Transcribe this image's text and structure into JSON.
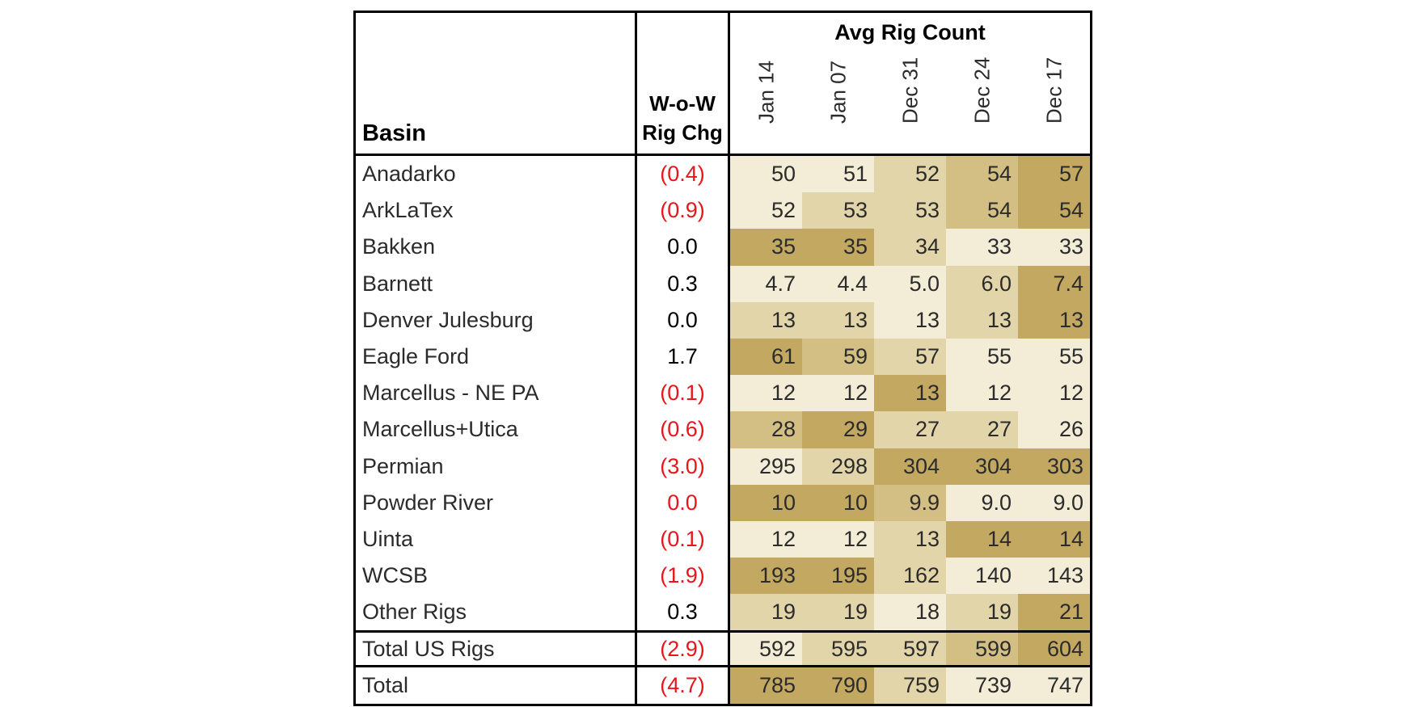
{
  "table": {
    "header": {
      "basin": "Basin",
      "chg_line1": "W-o-W",
      "chg_line2": "Rig Chg",
      "avg_title": "Avg Rig Count",
      "months": [
        "Jan 14",
        "Jan 07",
        "Dec 31",
        "Dec 24",
        "Dec 17"
      ]
    },
    "rows": [
      {
        "basin": "Anadarko",
        "chg": "(0.4)",
        "neg": true,
        "vals": [
          "50",
          "51",
          "52",
          "54",
          "57"
        ],
        "shade": [
          0,
          0,
          1,
          2,
          3
        ]
      },
      {
        "basin": "ArkLaTex",
        "chg": "(0.9)",
        "neg": true,
        "vals": [
          "52",
          "53",
          "53",
          "54",
          "54"
        ],
        "shade": [
          0,
          1,
          1,
          2,
          3
        ]
      },
      {
        "basin": "Bakken",
        "chg": "0.0",
        "neg": false,
        "vals": [
          "35",
          "35",
          "34",
          "33",
          "33"
        ],
        "shade": [
          3,
          3,
          1,
          0,
          0
        ]
      },
      {
        "basin": "Barnett",
        "chg": "0.3",
        "neg": false,
        "vals": [
          "4.7",
          "4.4",
          "5.0",
          "6.0",
          "7.4"
        ],
        "shade": [
          0,
          0,
          0,
          1,
          3
        ]
      },
      {
        "basin": "Denver Julesburg",
        "chg": "0.0",
        "neg": false,
        "vals": [
          "13",
          "13",
          "13",
          "13",
          "13"
        ],
        "shade": [
          1,
          1,
          0,
          1,
          3
        ]
      },
      {
        "basin": "Eagle Ford",
        "chg": "1.7",
        "neg": false,
        "vals": [
          "61",
          "59",
          "57",
          "55",
          "55"
        ],
        "shade": [
          3,
          2,
          1,
          0,
          0
        ]
      },
      {
        "basin": "Marcellus - NE PA",
        "chg": "(0.1)",
        "neg": true,
        "vals": [
          "12",
          "12",
          "13",
          "12",
          "12"
        ],
        "shade": [
          0,
          0,
          3,
          0,
          0
        ]
      },
      {
        "basin": "Marcellus+Utica",
        "chg": "(0.6)",
        "neg": true,
        "vals": [
          "28",
          "29",
          "27",
          "27",
          "26"
        ],
        "shade": [
          2,
          3,
          1,
          1,
          0
        ]
      },
      {
        "basin": "Permian",
        "chg": "(3.0)",
        "neg": true,
        "vals": [
          "295",
          "298",
          "304",
          "304",
          "303"
        ],
        "shade": [
          0,
          1,
          3,
          3,
          3
        ]
      },
      {
        "basin": "Powder River",
        "chg": "0.0",
        "neg": true,
        "vals": [
          "10",
          "10",
          "9.9",
          "9.0",
          "9.0"
        ],
        "shade": [
          3,
          3,
          2,
          0,
          0
        ]
      },
      {
        "basin": "Uinta",
        "chg": "(0.1)",
        "neg": true,
        "vals": [
          "12",
          "12",
          "13",
          "14",
          "14"
        ],
        "shade": [
          0,
          0,
          1,
          3,
          3
        ]
      },
      {
        "basin": "WCSB",
        "chg": "(1.9)",
        "neg": true,
        "vals": [
          "193",
          "195",
          "162",
          "140",
          "143"
        ],
        "shade": [
          3,
          3,
          1,
          0,
          0
        ]
      },
      {
        "basin": "Other Rigs",
        "chg": "0.3",
        "neg": false,
        "vals": [
          "19",
          "19",
          "18",
          "19",
          "21"
        ],
        "shade": [
          1,
          1,
          0,
          1,
          3
        ]
      }
    ],
    "total_us": {
      "basin": "Total US Rigs",
      "chg": "(2.9)",
      "neg": true,
      "vals": [
        "592",
        "595",
        "597",
        "599",
        "604"
      ],
      "shade": [
        0,
        1,
        1,
        2,
        3
      ]
    },
    "total": {
      "basin": "Total",
      "chg": "(4.7)",
      "neg": true,
      "vals": [
        "785",
        "790",
        "759",
        "739",
        "747"
      ],
      "shade": [
        3,
        3,
        1,
        0,
        0
      ]
    }
  },
  "colors": {
    "shades": [
      "#f3ecd6",
      "#e3d5aa",
      "#d3be84",
      "#c3a862"
    ],
    "negative": "#e8161c"
  },
  "chart_data": {
    "type": "table",
    "title": "Avg Rig Count",
    "columns": [
      "Basin",
      "W-o-W Rig Chg",
      "Jan 14",
      "Jan 07",
      "Dec 31",
      "Dec 24",
      "Dec 17"
    ],
    "rows": [
      [
        "Anadarko",
        -0.4,
        50,
        51,
        52,
        54,
        57
      ],
      [
        "ArkLaTex",
        -0.9,
        52,
        53,
        53,
        54,
        54
      ],
      [
        "Bakken",
        0.0,
        35,
        35,
        34,
        33,
        33
      ],
      [
        "Barnett",
        0.3,
        4.7,
        4.4,
        5.0,
        6.0,
        7.4
      ],
      [
        "Denver Julesburg",
        0.0,
        13,
        13,
        13,
        13,
        13
      ],
      [
        "Eagle Ford",
        1.7,
        61,
        59,
        57,
        55,
        55
      ],
      [
        "Marcellus - NE PA",
        -0.1,
        12,
        12,
        13,
        12,
        12
      ],
      [
        "Marcellus+Utica",
        -0.6,
        28,
        29,
        27,
        27,
        26
      ],
      [
        "Permian",
        -3.0,
        295,
        298,
        304,
        304,
        303
      ],
      [
        "Powder River",
        0.0,
        10,
        10,
        9.9,
        9.0,
        9.0
      ],
      [
        "Uinta",
        -0.1,
        12,
        12,
        13,
        14,
        14
      ],
      [
        "WCSB",
        -1.9,
        193,
        195,
        162,
        140,
        143
      ],
      [
        "Other Rigs",
        0.3,
        19,
        19,
        18,
        19,
        21
      ],
      [
        "Total US Rigs",
        -2.9,
        592,
        595,
        597,
        599,
        604
      ],
      [
        "Total",
        -4.7,
        785,
        790,
        759,
        739,
        747
      ]
    ]
  }
}
